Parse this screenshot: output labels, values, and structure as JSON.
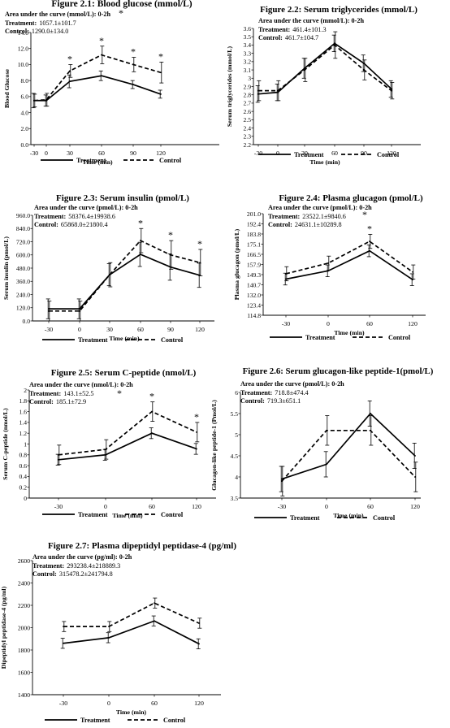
{
  "chart_data": [
    {
      "type": "line",
      "title": "Figure 2.1: Blood glucose (mmol/L)",
      "ylabel": "Blood Glucose",
      "xlabel": "Time (min)",
      "categories": [
        "-30",
        "0",
        "30",
        "60",
        "90",
        "120"
      ],
      "ylim": [
        0,
        14
      ],
      "yticks": [
        "0.0",
        "2.0",
        "4.0",
        "6.0",
        "8.0",
        "10.0",
        "12.0",
        "14.0"
      ],
      "auc_title": "Area under the curve (mmol/L): 0-2h",
      "auc_treatment_label": "Treatment:",
      "auc_treatment_value": "1057.1±101.7",
      "auc_control_label": "Control:",
      "auc_control_value": "1290.0±134.0",
      "series": [
        {
          "name": "Treatment",
          "style": "solid",
          "values": [
            5.5,
            5.5,
            7.9,
            8.6,
            7.5,
            6.3
          ],
          "errors": [
            0.9,
            0.7,
            0.8,
            0.6,
            0.5,
            0.5
          ]
        },
        {
          "name": "Control",
          "style": "dashed",
          "values": [
            5.5,
            5.6,
            9.2,
            11.2,
            10.0,
            9.0
          ],
          "errors": [
            0.8,
            0.8,
            0.8,
            1.1,
            0.9,
            1.3
          ]
        }
      ],
      "significant": [
        false,
        false,
        true,
        true,
        true,
        true
      ],
      "legend_position": "bottom"
    },
    {
      "type": "line",
      "title": "Figure 2.2: Serum triglycerides (mmol/L)",
      "ylabel": "Serum triglycerides (mmol/L)",
      "xlabel": "Time (min)",
      "categories": [
        "-30",
        "0",
        "30",
        "60",
        "90",
        "120"
      ],
      "ylim": [
        2.2,
        3.6
      ],
      "yticks": [
        "2.2",
        "2.3",
        "2.4",
        "2.5",
        "2.6",
        "2.7",
        "2.8",
        "2.9",
        "3",
        "3.1",
        "3.2",
        "3.3",
        "3.4",
        "3.5",
        "3.6"
      ],
      "auc_title": "Area under the curve (mmol/L): 0-2h",
      "auc_treatment_label": "Treatment:",
      "auc_treatment_value": "461.4±101.3",
      "auc_control_label": "Control:",
      "auc_control_value": "461.7±104.7",
      "series": [
        {
          "name": "Treatment",
          "style": "solid",
          "values": [
            2.81,
            2.83,
            3.12,
            3.42,
            3.18,
            2.87
          ],
          "errors": [
            0.1,
            0.1,
            0.12,
            0.1,
            0.1,
            0.1
          ]
        },
        {
          "name": "Control",
          "style": "dashed",
          "values": [
            2.85,
            2.85,
            3.1,
            3.4,
            3.1,
            2.85
          ],
          "errors": [
            0.12,
            0.12,
            0.14,
            0.16,
            0.12,
            0.1
          ]
        }
      ],
      "significant": [
        false,
        false,
        false,
        false,
        false,
        false
      ],
      "legend_position": "bottom"
    },
    {
      "type": "line",
      "title": "Figure 2.3: Serum insulin (pmol/L)",
      "ylabel": "Serum insulin (pmol/L)",
      "xlabel": "Time (min)",
      "categories": [
        "-30",
        "0",
        "30",
        "60",
        "90",
        "120"
      ],
      "ylim": [
        0,
        960
      ],
      "yticks": [
        "0.0",
        "120.0",
        "240.0",
        "360.0",
        "480.0",
        "600.0",
        "720.0",
        "840.0",
        "960.0"
      ],
      "auc_title": "Area under the curve (pmol/L): 0-2h",
      "auc_treatment_label": "Treatment:",
      "auc_treatment_value": "58376.4±19938.6",
      "auc_control_label": "Control:",
      "auc_control_value": "65868.0±21800.4",
      "series": [
        {
          "name": "Treatment",
          "style": "solid",
          "values": [
            110,
            110,
            420,
            605,
            490,
            415
          ],
          "errors": [
            90,
            90,
            100,
            110,
            120,
            110
          ]
        },
        {
          "name": "Control",
          "style": "dashed",
          "values": [
            90,
            90,
            420,
            730,
            600,
            530
          ],
          "errors": [
            90,
            90,
            110,
            110,
            130,
            120
          ]
        }
      ],
      "significant": [
        false,
        false,
        false,
        true,
        true,
        true
      ],
      "legend_position": "bottom"
    },
    {
      "type": "line",
      "title": "Figure 2.4: Plasma glucagon (pmol/L)",
      "ylabel": "Plasma glucagon (pmol/L)",
      "xlabel": "Time (min)",
      "categories": [
        "-30",
        "0",
        "60",
        "120"
      ],
      "ylim": [
        114.8,
        201.0
      ],
      "yticks": [
        "114.8",
        "123.4",
        "132.0",
        "140.7",
        "149.3",
        "157.9",
        "166.5",
        "175.1",
        "183.8",
        "192.4",
        "201.0"
      ],
      "auc_title": "Area under the curve (pmol/L): 0-2h",
      "auc_treatment_label": "Treatment:",
      "auc_treatment_value": "23522.1±9840.6",
      "auc_control_label": "Control:",
      "auc_control_value": "24631.1±10289.8",
      "series": [
        {
          "name": "Treatment",
          "style": "solid",
          "values": [
            145.5,
            152.5,
            169.5,
            145.0
          ],
          "errors": [
            5,
            5,
            5,
            5
          ]
        },
        {
          "name": "Control",
          "style": "dashed",
          "values": [
            150.0,
            159.0,
            177.5,
            151.5
          ],
          "errors": [
            6,
            6,
            6,
            6
          ]
        }
      ],
      "significant": [
        false,
        false,
        true,
        false
      ],
      "legend_position": "bottom"
    },
    {
      "type": "line",
      "title": "Figure 2.5: Serum C-peptide (nmol/L)",
      "ylabel": "Serum C-peptide (nmol/L)",
      "xlabel": "Time (min)",
      "categories": [
        "-30",
        "0",
        "60",
        "120"
      ],
      "ylim": [
        0,
        2
      ],
      "yticks": [
        "0",
        "0.2",
        "0.4",
        "0.6",
        "0.8",
        "1",
        "1.2",
        "1.4",
        "1.6",
        "1.8",
        "2"
      ],
      "auc_title": "Area under the curve (nmol/L): 0-2h",
      "auc_treatment_label": "Treatment:",
      "auc_treatment_value": "143.1±52.5",
      "auc_control_label": "Control:",
      "auc_control_value": "185.1±72.9",
      "series": [
        {
          "name": "Treatment",
          "style": "solid",
          "values": [
            0.71,
            0.8,
            1.2,
            0.91
          ],
          "errors": [
            0.1,
            0.1,
            0.1,
            0.1
          ]
        },
        {
          "name": "Control",
          "style": "dashed",
          "values": [
            0.8,
            0.9,
            1.6,
            1.22
          ],
          "errors": [
            0.18,
            0.18,
            0.18,
            0.18
          ]
        }
      ],
      "significant": [
        false,
        false,
        true,
        true
      ],
      "auc_star": true,
      "legend_position": "bottom"
    },
    {
      "type": "line",
      "title": "Figure 2.6: Serum glucagon-like peptide-1(pmol/L)",
      "ylabel": "Glucagon-like peptide-1 (Pmol/L)",
      "xlabel": "Time (min)",
      "categories": [
        "-30",
        "0",
        "60",
        "120"
      ],
      "ylim": [
        3.5,
        6
      ],
      "yticks": [
        "3.5",
        "4",
        "4.5",
        "5",
        "5.5",
        "6"
      ],
      "auc_title": "Area under the curve (pmol/L): 0-2h",
      "auc_treatment_label": "Treatment:",
      "auc_treatment_value": "718.8±474.4",
      "auc_control_label": "Control:",
      "auc_control_value": "719.3±651.1",
      "series": [
        {
          "name": "Treatment",
          "style": "solid",
          "values": [
            3.95,
            4.3,
            5.5,
            4.5
          ],
          "errors": [
            0.3,
            0.3,
            0.3,
            0.3
          ]
        },
        {
          "name": "Control",
          "style": "dashed",
          "values": [
            3.9,
            5.1,
            5.1,
            4.0
          ],
          "errors": [
            0.35,
            0.35,
            0.35,
            0.35
          ]
        }
      ],
      "significant": [
        false,
        false,
        false,
        false
      ],
      "legend_position": "bottom"
    },
    {
      "type": "line",
      "title": "Figure 2.7: Plasma dipeptidyl peptidase-4 (pg/ml)",
      "ylabel": "Dipeptidyl peptidase-4 (pg/ml)",
      "xlabel": "Time  (min)",
      "categories": [
        "-30",
        "0",
        "60",
        "120"
      ],
      "ylim": [
        1400,
        2600
      ],
      "yticks": [
        "1400",
        "1600",
        "1800",
        "2000",
        "2200",
        "2400",
        "2600"
      ],
      "auc_title": "Area under the curve (pg/ml): 0-2h",
      "auc_treatment_label": "Treatment:",
      "auc_treatment_value": "293238.4±218889.3",
      "auc_control_label": "Control:",
      "auc_control_value": "315478.2±241794.8",
      "series": [
        {
          "name": "Treatment",
          "style": "solid",
          "values": [
            1860,
            1910,
            2060,
            1855
          ],
          "errors": [
            45,
            45,
            45,
            45
          ]
        },
        {
          "name": "Control",
          "style": "dashed",
          "values": [
            2010,
            2010,
            2220,
            2040
          ],
          "errors": [
            45,
            45,
            45,
            45
          ]
        }
      ],
      "significant": [
        false,
        false,
        false,
        false
      ],
      "legend_position": "bottom"
    }
  ]
}
